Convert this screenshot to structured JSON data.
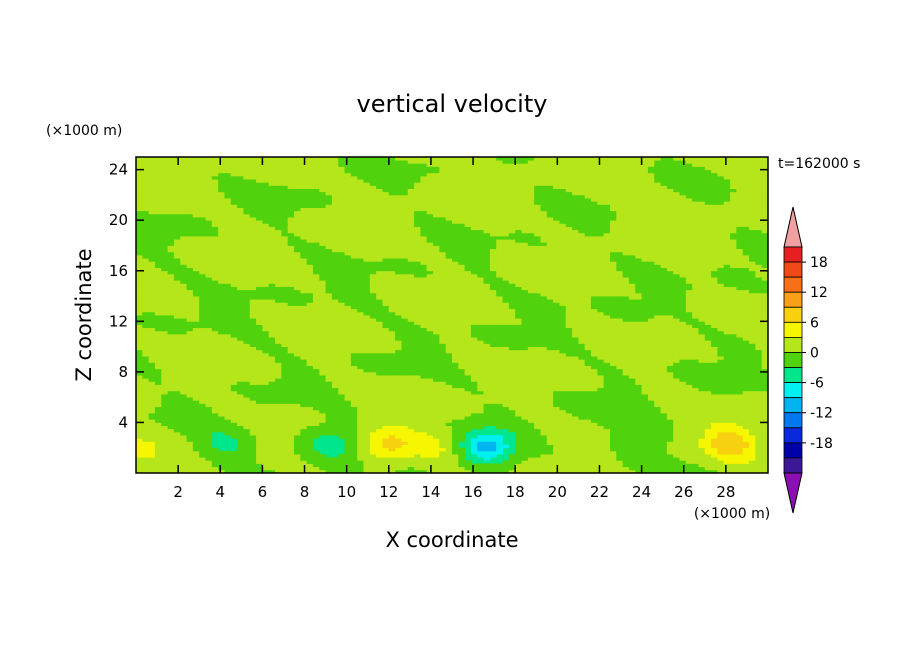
{
  "chart_data": {
    "type": "heatmap",
    "title": "vertical velocity",
    "xlabel": "X coordinate",
    "ylabel": "Z coordinate",
    "x_unit": "(×1000 m)",
    "y_unit": "(×1000 m)",
    "time_label": "t=162000 s",
    "xlim": [
      0,
      30
    ],
    "ylim": [
      0,
      25
    ],
    "x_ticks": [
      2,
      4,
      6,
      8,
      10,
      12,
      14,
      16,
      18,
      20,
      22,
      24,
      26,
      28
    ],
    "y_ticks": [
      4,
      8,
      12,
      16,
      20,
      24
    ],
    "colorbar": {
      "labels": [
        18,
        12,
        6,
        0,
        -6,
        -12,
        -18
      ],
      "levels": [
        21,
        18,
        15,
        12,
        9,
        6,
        3,
        0,
        -3,
        -6,
        -9,
        -12,
        -15,
        -18,
        -21
      ],
      "colors": [
        "#f0a0a0",
        "#e62020",
        "#f04818",
        "#f77018",
        "#f9a018",
        "#f7d010",
        "#f6f600",
        "#b4e61a",
        "#50d20c",
        "#00e68c",
        "#00f0f0",
        "#00b4f0",
        "#0078f0",
        "#0a28dc",
        "#0000aa",
        "#3c1896",
        "#8c0fb4"
      ],
      "over_color": "#f0a0a0",
      "under_color": "#8c0fb4"
    },
    "features": [
      {
        "x": 4.2,
        "z": 2.2,
        "w": -4
      },
      {
        "x": 9.2,
        "z": 2.4,
        "w": -5
      },
      {
        "x": 12.0,
        "z": 2.2,
        "w": 7
      },
      {
        "x": 14.3,
        "z": 2.2,
        "w": 3
      },
      {
        "x": 16.6,
        "z": 2.0,
        "w": -10
      },
      {
        "x": 23.8,
        "z": 2.6,
        "w": -3
      },
      {
        "x": 28.2,
        "z": 2.3,
        "w": 8
      },
      {
        "x": 0.2,
        "z": 2.0,
        "w": 3
      }
    ]
  }
}
